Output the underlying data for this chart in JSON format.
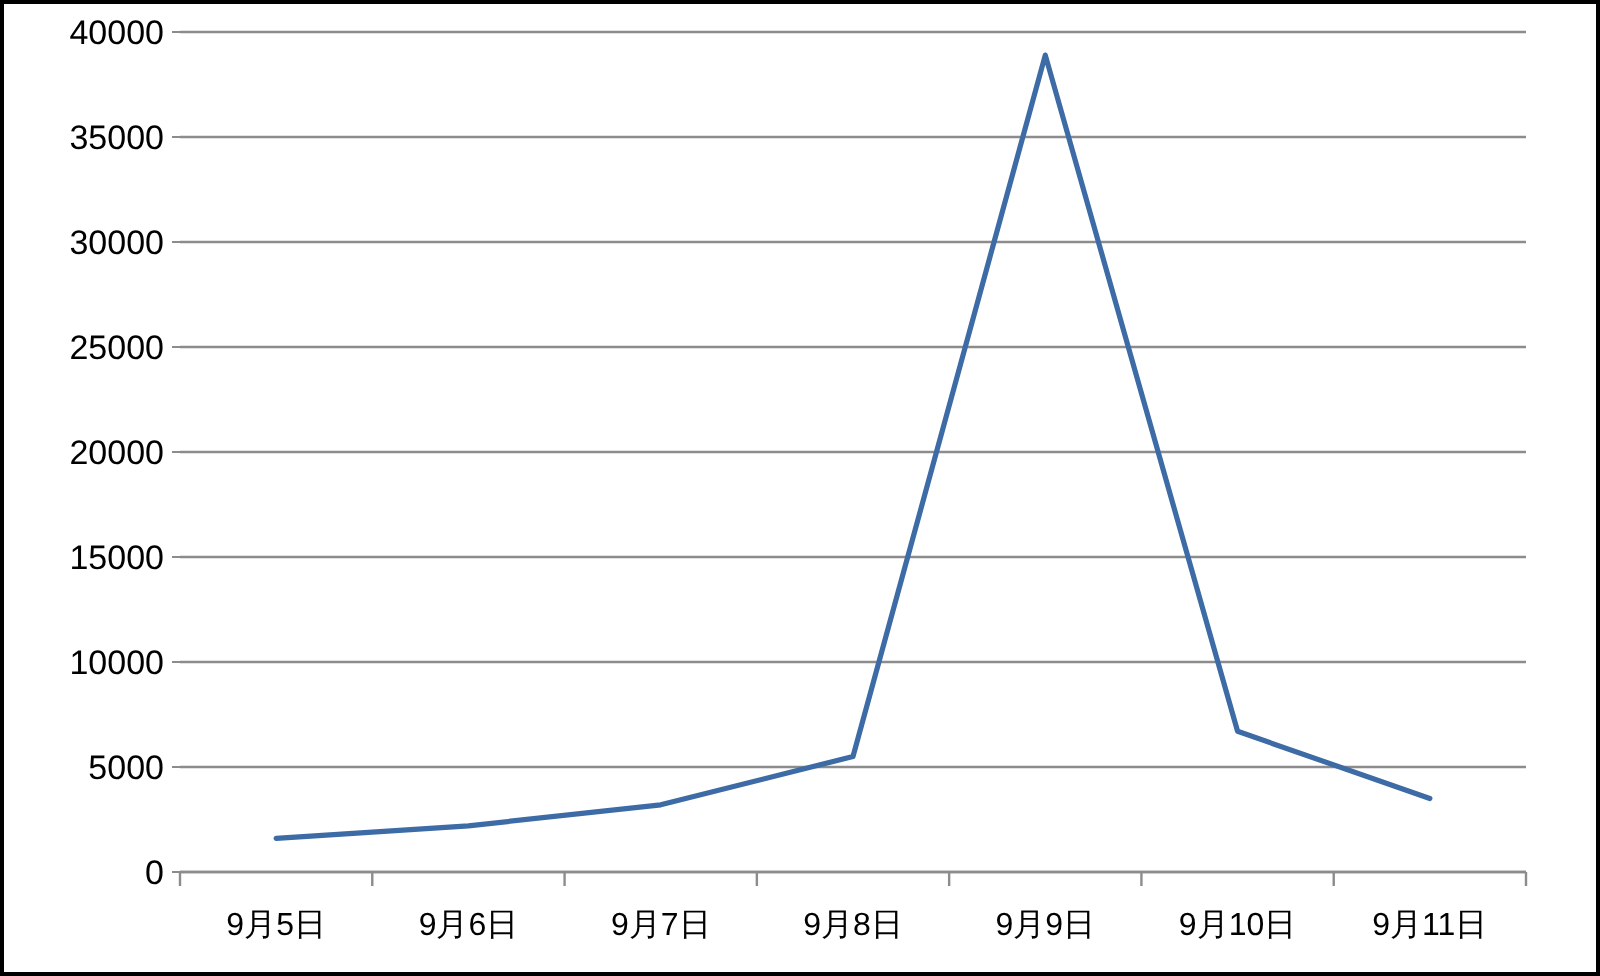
{
  "chart_data": {
    "type": "line",
    "categories": [
      "9月5日",
      "9月6日",
      "9月7日",
      "9月8日",
      "9月9日",
      "9月10日",
      "9月11日"
    ],
    "series": [
      {
        "color": "#3d6ba5",
        "values": [
          1600,
          2200,
          3200,
          5500,
          38900,
          6700,
          3500
        ]
      }
    ],
    "ylim": [
      0,
      40000
    ],
    "yticks": [
      0,
      5000,
      10000,
      15000,
      20000,
      25000,
      30000,
      35000,
      40000
    ],
    "grid": "y",
    "marker": "none",
    "line_style": "solid"
  }
}
